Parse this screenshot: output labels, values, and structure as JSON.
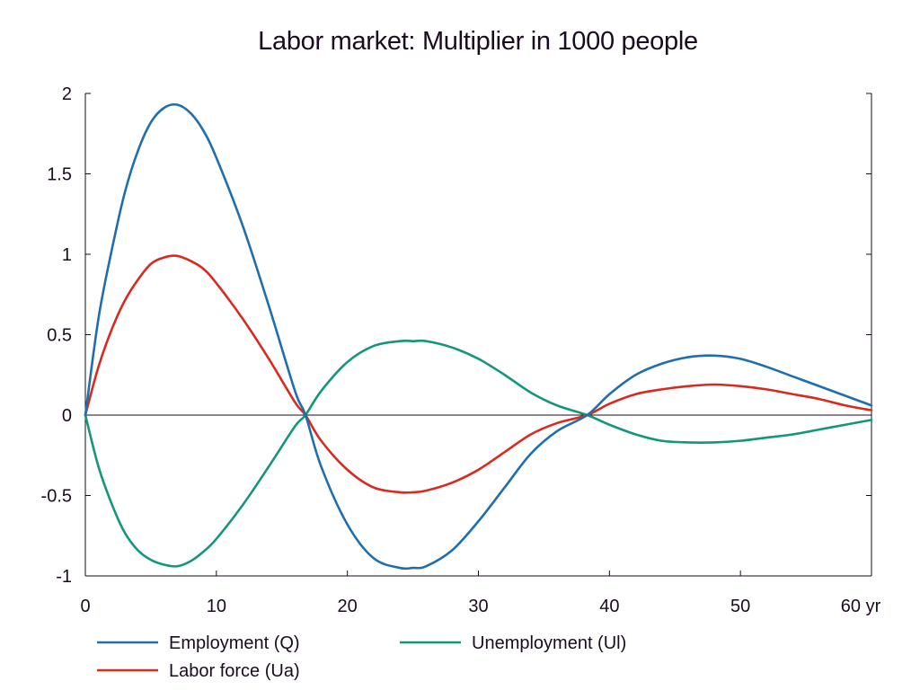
{
  "chart_data": {
    "type": "line",
    "title": "Labor market: Multiplier in 1000 people",
    "x_unit": "yr",
    "xlim": [
      0,
      60
    ],
    "ylim": [
      -1,
      2
    ],
    "x_ticks": [
      0,
      10,
      20,
      30,
      40,
      50,
      60
    ],
    "x_tick_labels": [
      "0",
      "10",
      "20",
      "30",
      "40",
      "50",
      "60 yr"
    ],
    "y_ticks": [
      2,
      1.5,
      1,
      0.5,
      0,
      -0.5,
      -1
    ],
    "y_tick_labels": [
      "2",
      "1.5",
      "1",
      "0.5",
      "0",
      "-0.5",
      "-1"
    ],
    "grid": false,
    "zero_line": true,
    "legend_position": "bottom",
    "series": [
      {
        "name": "Employment (Q)",
        "color": "#1f6fae",
        "x": [
          0,
          1,
          2,
          3,
          4,
          5,
          6,
          7,
          8,
          9,
          10,
          12,
          14,
          16,
          16.8,
          18,
          20,
          22,
          24,
          25,
          26,
          28,
          30,
          32,
          34,
          36,
          38.3,
          40,
          42,
          44,
          46,
          48,
          50,
          52,
          54,
          56,
          58,
          60
        ],
        "y": [
          0,
          0.6,
          1.02,
          1.38,
          1.64,
          1.82,
          1.91,
          1.93,
          1.88,
          1.77,
          1.6,
          1.18,
          0.68,
          0.15,
          0,
          -0.32,
          -0.68,
          -0.89,
          -0.95,
          -0.95,
          -0.94,
          -0.84,
          -0.66,
          -0.45,
          -0.24,
          -0.1,
          0,
          0.13,
          0.25,
          0.32,
          0.36,
          0.37,
          0.35,
          0.3,
          0.24,
          0.18,
          0.12,
          0.06
        ]
      },
      {
        "name": "Labor force (Ua)",
        "color": "#d82a1f",
        "x": [
          0,
          1,
          2,
          3,
          4,
          5,
          6,
          7,
          8,
          9,
          10,
          12,
          14,
          16,
          16.8,
          18,
          20,
          22,
          24,
          25,
          26,
          28,
          30,
          32,
          34,
          36,
          38.3,
          40,
          42,
          44,
          46,
          48,
          50,
          52,
          54,
          56,
          58,
          60
        ],
        "y": [
          0,
          0.3,
          0.53,
          0.71,
          0.84,
          0.94,
          0.98,
          0.99,
          0.96,
          0.91,
          0.82,
          0.6,
          0.35,
          0.08,
          0,
          -0.16,
          -0.34,
          -0.45,
          -0.48,
          -0.48,
          -0.47,
          -0.42,
          -0.34,
          -0.23,
          -0.12,
          -0.05,
          0,
          0.07,
          0.13,
          0.16,
          0.18,
          0.19,
          0.18,
          0.16,
          0.13,
          0.1,
          0.06,
          0.03
        ]
      },
      {
        "name": "Unemployment (Ul)",
        "color": "#14967a",
        "x": [
          0,
          1,
          2,
          3,
          4,
          5,
          6,
          7,
          8,
          9,
          10,
          12,
          14,
          16,
          16.8,
          18,
          20,
          22,
          24,
          25,
          26,
          28,
          30,
          32,
          34,
          36,
          38.3,
          40,
          42,
          44,
          46,
          48,
          50,
          52,
          54,
          56,
          58,
          60
        ],
        "y": [
          0,
          -0.32,
          -0.55,
          -0.73,
          -0.84,
          -0.9,
          -0.93,
          -0.94,
          -0.91,
          -0.85,
          -0.77,
          -0.56,
          -0.32,
          -0.07,
          0,
          0.15,
          0.33,
          0.43,
          0.46,
          0.46,
          0.46,
          0.42,
          0.35,
          0.25,
          0.14,
          0.06,
          0,
          -0.06,
          -0.12,
          -0.16,
          -0.17,
          -0.17,
          -0.16,
          -0.14,
          -0.12,
          -0.09,
          -0.06,
          -0.03
        ]
      }
    ]
  }
}
